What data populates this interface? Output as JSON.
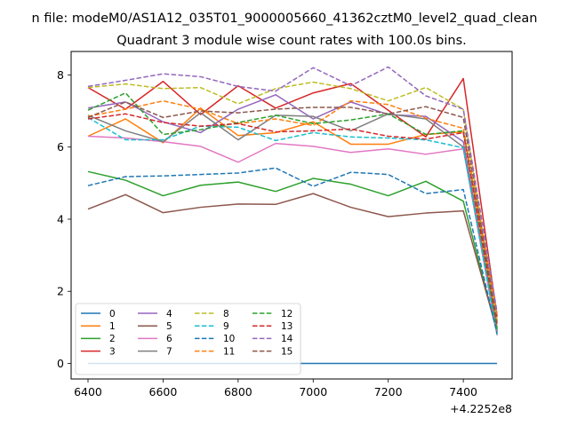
{
  "chart_data": {
    "type": "line",
    "suptitle": "n file: modeM0/AS1A12_035T01_9000005660_41362cztM0_level2_quad_clean",
    "title": "Quadrant 3 module wise count rates with 100.0s bins.",
    "xlabel": "",
    "ylabel": "",
    "x_offset_label": "+4.2252e8",
    "xlim": [
      6355,
      7530
    ],
    "ylim": [
      -0.43,
      8.65
    ],
    "xticks": [
      6400,
      6600,
      6800,
      7000,
      7200,
      7400
    ],
    "xtick_labels": [
      "6400",
      "6600",
      "6800",
      "7000",
      "7200",
      "7400"
    ],
    "yticks": [
      0,
      2,
      4,
      6,
      8
    ],
    "ytick_labels": [
      "0",
      "2",
      "4",
      "6",
      "8"
    ],
    "grid": false,
    "legend_position": "lower-left",
    "legend_columns": 4,
    "x": [
      6400,
      6500,
      6600,
      6700,
      6800,
      6900,
      7000,
      7100,
      7200,
      7300,
      7400,
      7490
    ],
    "series": [
      {
        "name": "0",
        "color": "#1f77b4",
        "dash": "solid",
        "values": [
          0,
          0,
          0,
          0,
          0,
          0,
          0,
          0,
          0,
          0,
          0,
          0
        ]
      },
      {
        "name": "1",
        "color": "#ff7f0e",
        "dash": "solid",
        "values": [
          6.3,
          6.78,
          6.12,
          7.08,
          6.32,
          6.4,
          6.7,
          6.08,
          6.08,
          6.35,
          6.42,
          1.2
        ]
      },
      {
        "name": "2",
        "color": "#2ca02c",
        "dash": "solid",
        "values": [
          5.32,
          5.08,
          4.65,
          4.94,
          5.03,
          4.77,
          5.13,
          4.97,
          4.65,
          5.05,
          4.5,
          0.85
        ]
      },
      {
        "name": "3",
        "color": "#d62728",
        "dash": "solid",
        "values": [
          7.65,
          7.05,
          7.82,
          6.9,
          7.7,
          7.08,
          7.5,
          7.76,
          7.02,
          6.28,
          7.9,
          1.3
        ]
      },
      {
        "name": "4",
        "color": "#9467bd",
        "dash": "solid",
        "values": [
          7.08,
          7.25,
          6.7,
          6.4,
          7.05,
          7.45,
          6.78,
          7.25,
          6.9,
          6.85,
          6.15,
          0.9
        ]
      },
      {
        "name": "5",
        "color": "#8c564b",
        "dash": "solid",
        "values": [
          4.28,
          4.68,
          4.18,
          4.33,
          4.42,
          4.41,
          4.71,
          4.33,
          4.07,
          4.17,
          4.23,
          0.9
        ]
      },
      {
        "name": "6",
        "color": "#e377c2",
        "dash": "solid",
        "values": [
          6.3,
          6.25,
          6.15,
          6.02,
          5.58,
          6.1,
          6.02,
          5.85,
          5.95,
          5.8,
          5.95,
          0.78
        ]
      },
      {
        "name": "7",
        "color": "#7f7f7f",
        "dash": "solid",
        "values": [
          6.88,
          6.45,
          6.15,
          6.95,
          6.2,
          6.88,
          6.85,
          6.45,
          6.92,
          6.78,
          6.0,
          1.0
        ]
      },
      {
        "name": "8",
        "color": "#bcbd22",
        "dash": "dashed",
        "values": [
          7.65,
          7.75,
          7.62,
          7.65,
          7.2,
          7.62,
          7.8,
          7.62,
          7.28,
          7.65,
          7.05,
          1.15
        ]
      },
      {
        "name": "9",
        "color": "#17becf",
        "dash": "dashed",
        "values": [
          6.82,
          6.2,
          6.2,
          6.58,
          6.55,
          6.18,
          6.4,
          6.28,
          6.25,
          6.2,
          5.98,
          0.8
        ]
      },
      {
        "name": "10",
        "color": "#1f77b4",
        "dash": "dashed",
        "values": [
          4.93,
          5.18,
          5.2,
          5.24,
          5.28,
          5.42,
          4.91,
          5.3,
          5.24,
          4.71,
          4.82,
          0.83
        ]
      },
      {
        "name": "11",
        "color": "#ff7f0e",
        "dash": "dashed",
        "values": [
          6.85,
          7.05,
          7.28,
          7.05,
          6.65,
          6.78,
          6.6,
          7.28,
          7.18,
          6.8,
          6.52,
          1.35
        ]
      },
      {
        "name": "12",
        "color": "#2ca02c",
        "dash": "dashed",
        "values": [
          7.02,
          7.5,
          6.35,
          6.48,
          6.68,
          6.88,
          6.65,
          6.75,
          6.92,
          6.35,
          6.45,
          0.95
        ]
      },
      {
        "name": "13",
        "color": "#d62728",
        "dash": "dashed",
        "values": [
          6.78,
          6.92,
          6.68,
          6.58,
          6.65,
          6.42,
          6.45,
          6.5,
          6.3,
          6.22,
          6.4,
          1.05
        ]
      },
      {
        "name": "14",
        "color": "#9467bd",
        "dash": "dashed",
        "values": [
          7.68,
          7.85,
          8.03,
          7.95,
          7.68,
          7.55,
          8.2,
          7.7,
          8.22,
          7.42,
          7.05,
          1.42
        ]
      },
      {
        "name": "15",
        "color": "#8c564b",
        "dash": "dashed",
        "values": [
          6.82,
          7.25,
          6.82,
          7.0,
          6.95,
          7.05,
          7.1,
          7.1,
          6.92,
          7.12,
          6.82,
          1.12
        ]
      }
    ]
  }
}
